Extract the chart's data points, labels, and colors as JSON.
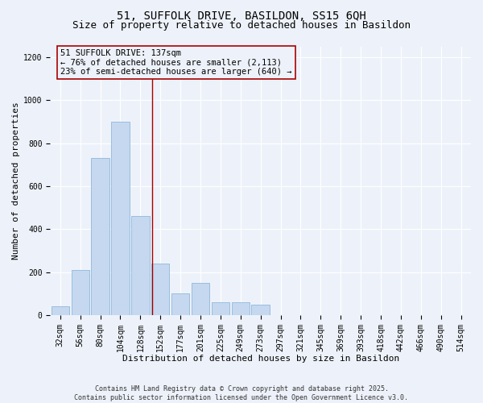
{
  "title_line1": "51, SUFFOLK DRIVE, BASILDON, SS15 6QH",
  "title_line2": "Size of property relative to detached houses in Basildon",
  "xlabel": "Distribution of detached houses by size in Basildon",
  "ylabel": "Number of detached properties",
  "footnote": "Contains HM Land Registry data © Crown copyright and database right 2025.\nContains public sector information licensed under the Open Government Licence v3.0.",
  "bar_labels": [
    "32sqm",
    "56sqm",
    "80sqm",
    "104sqm",
    "128sqm",
    "152sqm",
    "177sqm",
    "201sqm",
    "225sqm",
    "249sqm",
    "273sqm",
    "297sqm",
    "321sqm",
    "345sqm",
    "369sqm",
    "393sqm",
    "418sqm",
    "442sqm",
    "466sqm",
    "490sqm",
    "514sqm"
  ],
  "bar_values": [
    40,
    210,
    730,
    900,
    460,
    240,
    100,
    150,
    60,
    60,
    50,
    0,
    0,
    0,
    0,
    0,
    0,
    0,
    0,
    0,
    0
  ],
  "bar_color": "#c5d8f0",
  "bar_edge_color": "#7fafd4",
  "background_color": "#edf2fa",
  "grid_color": "#ffffff",
  "annotation_box_color": "#aa0000",
  "vline_color": "#aa0000",
  "vline_position": 4.6,
  "annotation_text": "51 SUFFOLK DRIVE: 137sqm\n← 76% of detached houses are smaller (2,113)\n23% of semi-detached houses are larger (640) →",
  "ylim": [
    0,
    1250
  ],
  "yticks": [
    0,
    200,
    400,
    600,
    800,
    1000,
    1200
  ],
  "title_fontsize": 10,
  "subtitle_fontsize": 9,
  "annotation_fontsize": 7.5,
  "footnote_fontsize": 6,
  "tick_fontsize": 7,
  "ylabel_fontsize": 8,
  "xlabel_fontsize": 8
}
